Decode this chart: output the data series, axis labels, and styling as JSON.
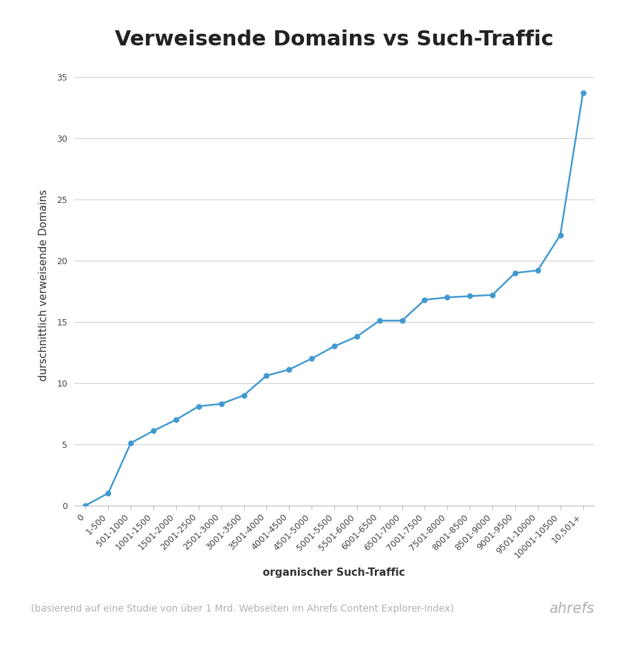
{
  "title": "Verweisende Domains vs Such-Traffic",
  "xlabel": "organischer Such-Traffic",
  "ylabel": "durschnittlich verweisende Domains",
  "footnote": "(basierend auf eine Studie von über 1 Mrd. Webseiten im Ahrefs Content Explorer-Index)",
  "brand": "ahrefs",
  "categories": [
    "0",
    "1-500",
    "501-1000",
    "1001-1500",
    "1501-2000",
    "2001-2500",
    "2501-3000",
    "3001-3500",
    "3501-4000",
    "4001-4500",
    "4501-5000",
    "5001-5500",
    "5501-6000",
    "6001-6500",
    "6501-7000",
    "7001-7500",
    "7501-8000",
    "8001-8500",
    "8501-9000",
    "9001-9500",
    "9501-10000",
    "10001-10500",
    "10,501+"
  ],
  "values": [
    0.0,
    1.0,
    5.1,
    6.1,
    7.0,
    8.1,
    8.3,
    9.0,
    10.6,
    11.1,
    12.0,
    13.0,
    13.8,
    15.1,
    15.1,
    16.8,
    17.0,
    17.1,
    17.2,
    19.0,
    19.2,
    22.1,
    33.7
  ],
  "line_color": "#4199d0",
  "marker_color": "#4199d0",
  "background_color": "#ffffff",
  "grid_color": "#d0d0d0",
  "title_fontsize": 22,
  "label_fontsize": 11,
  "tick_fontsize": 9,
  "footnote_fontsize": 10,
  "brand_fontsize": 15,
  "footnote_color": "#b0b0b0",
  "brand_color": "#b0b0b0",
  "ylim": [
    0,
    36
  ],
  "yticks": [
    0,
    5,
    10,
    15,
    20,
    25,
    30,
    35
  ]
}
